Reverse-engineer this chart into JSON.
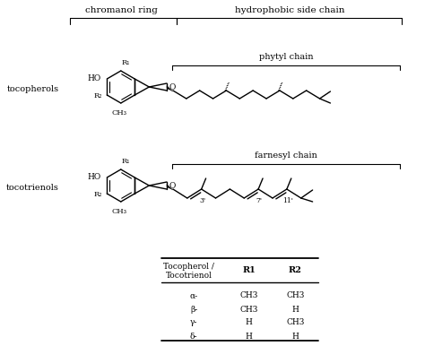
{
  "bg_color": "#ffffff",
  "text_color": "#000000",
  "line_color": "#000000",
  "fig_width": 4.74,
  "fig_height": 3.86,
  "dpi": 100,
  "top_labels": {
    "chromanol_ring": "chromanol ring",
    "hydrophobic_side_chain": "hydrophobic side chain"
  },
  "side_labels": {
    "tocopherols": "tocopherols",
    "tocotrienols": "tocotrienols"
  },
  "chain_labels": {
    "phytyl": "phytyl chain",
    "farnesyl": "farnesyl chain"
  },
  "table": {
    "rows": [
      [
        "α-",
        "CH3",
        "CH3"
      ],
      [
        "β-",
        "CH3",
        "H"
      ],
      [
        "γ-",
        "H",
        "CH3"
      ],
      [
        "δ-",
        "H",
        "H"
      ]
    ]
  }
}
